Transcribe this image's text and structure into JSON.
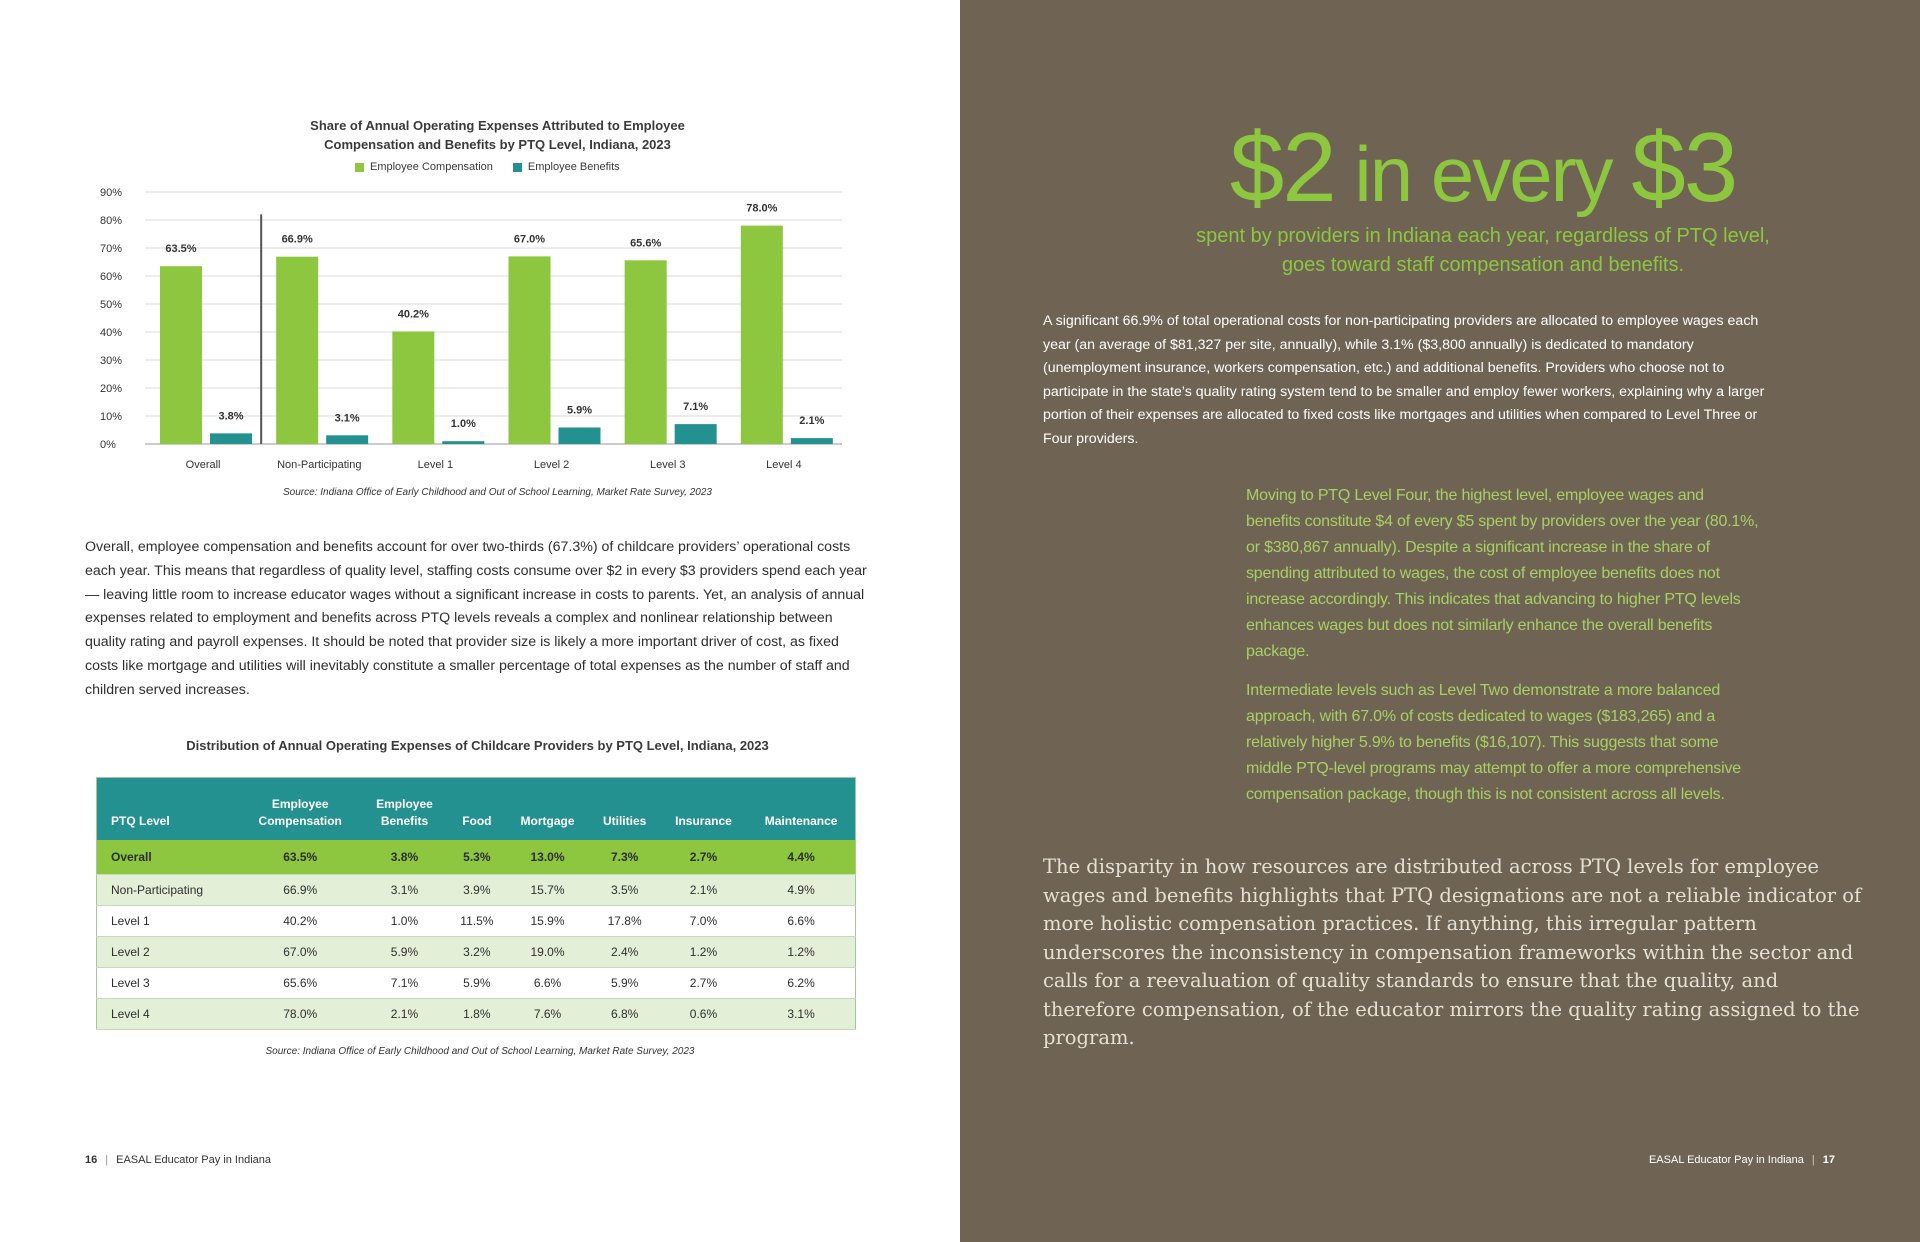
{
  "left_page": {
    "chart": {
      "title_line1": "Share of Annual Operating Expenses Attributed to Employee",
      "title_line2": "Compensation and Benefits by PTQ Level, Indiana, 2023",
      "source": "Source: Indiana Office of Early Childhood and Out of School Learning, Market Rate Survey, 2023"
    },
    "body_paragraph": "Overall, employee compensation and benefits account for over two-thirds (67.3%) of childcare providers’ operational costs each year. This means that regardless of quality level, staffing costs consume over $2 in every $3 providers spend each year — leaving little room to increase educator wages without a significant increase in costs to parents. Yet, an analysis of annual expenses related to employment and benefits across PTQ levels reveals a complex and nonlinear relationship between quality rating and payroll expenses. It should be noted that provider size is likely a more important driver of cost, as fixed costs like mortgage and utilities will inevitably constitute a smaller percentage of total expenses as the number of staff and children served increases.",
    "table": {
      "title": "Distribution of Annual Operating Expenses of Childcare Providers by PTQ Level, Indiana, 2023",
      "headers": [
        [
          "",
          "PTQ Level"
        ],
        [
          "Employee",
          "Compensation"
        ],
        [
          "Employee",
          "Benefits"
        ],
        [
          "",
          "Food"
        ],
        [
          "",
          "Mortgage"
        ],
        [
          "",
          "Utilities"
        ],
        [
          "",
          "Insurance"
        ],
        [
          "",
          "Maintenance"
        ]
      ],
      "rows": [
        [
          "Overall",
          "63.5%",
          "3.8%",
          "5.3%",
          "13.0%",
          "7.3%",
          "2.7%",
          "4.4%"
        ],
        [
          "Non-Participating",
          "66.9%",
          "3.1%",
          "3.9%",
          "15.7%",
          "3.5%",
          "2.1%",
          "4.9%"
        ],
        [
          "Level 1",
          "40.2%",
          "1.0%",
          "11.5%",
          "15.9%",
          "17.8%",
          "7.0%",
          "6.6%"
        ],
        [
          "Level 2",
          "67.0%",
          "5.9%",
          "3.2%",
          "19.0%",
          "2.4%",
          "1.2%",
          "1.2%"
        ],
        [
          "Level 3",
          "65.6%",
          "7.1%",
          "5.9%",
          "6.6%",
          "5.9%",
          "2.7%",
          "6.2%"
        ],
        [
          "Level 4",
          "78.0%",
          "2.1%",
          "1.8%",
          "7.6%",
          "6.8%",
          "0.6%",
          "3.1%"
        ]
      ],
      "source": "Source: Indiana Office of Early Childhood and Out of School Learning, Market Rate Survey, 2023"
    },
    "footer": {
      "page_number": "16",
      "separator": "|",
      "publication": "EASAL Educator Pay in Indiana"
    }
  },
  "right_page": {
    "headline_part1": "$2",
    "headline_part2": " in every ",
    "headline_part3": "$3",
    "subhead_line1": "spent by providers in Indiana each year, regardless of PTQ level,",
    "subhead_line2": "goes toward staff compensation and benefits.",
    "paragraph": "A significant 66.9% of total operational costs for non-participating providers are allocated to employee wages each year (an average of $81,327 per site, annually), while 3.1% ($3,800 annually) is dedicated to mandatory (unemployment insurance, workers compensation, etc.) and additional benefits. Providers who choose not to participate in the state’s quality rating system tend to be smaller and employ fewer workers, explaining why a larger portion of their expenses are allocated to fixed costs like mortgages and utilities when compared to Level Three or Four providers.",
    "callout_1": "Moving to PTQ Level Four, the highest level, employee wages and benefits constitute $4 of every $5 spent by providers over the year (80.1%, or $380,867 annually). Despite a significant increase in the share of spending attributed to wages, the cost of employee benefits does not increase accordingly. This indicates that advancing to higher PTQ levels enhances wages but does not similarly enhance the overall benefits package.",
    "callout_2": "Intermediate levels such as Level Two demonstrate a more balanced approach, with 67.0% of costs dedicated to wages ($183,265) and a relatively higher 5.9% to benefits ($16,107). This suggests that some middle PTQ-level programs may attempt to offer a more comprehensive compensation package, though this is not consistent across all levels.",
    "closing_paragraph": "The disparity in how resources are distributed across PTQ levels for employee wages and benefits highlights that PTQ designations are not a reliable indicator of more holistic compensation practices. If anything, this irregular pattern underscores the inconsistency in compensation frameworks within the sector and calls for a reevaluation of quality standards to ensure that the quality, and therefore compensation, of the educator mirrors the quality rating assigned to the program.",
    "footer": {
      "publication": "EASAL Educator Pay in Indiana",
      "separator": "|",
      "page_number": "17"
    }
  },
  "colors": {
    "compensation_green": "#8dc63f",
    "benefits_teal": "#23918f",
    "right_page_bg": "#6f6454"
  },
  "chart_data": {
    "type": "bar",
    "title": "Share of Annual Operating Expenses Attributed to Employee Compensation and Benefits by PTQ Level, Indiana, 2023",
    "categories": [
      "Overall",
      "Non-Participating",
      "Level 1",
      "Level 2",
      "Level 3",
      "Level 4"
    ],
    "series": [
      {
        "name": "Employee Compensation",
        "values": [
          63.5,
          66.9,
          40.2,
          67.0,
          65.6,
          78.0
        ],
        "labels": [
          "63.5%",
          "66.9%",
          "40.2%",
          "67.0%",
          "65.6%",
          "78.0%"
        ],
        "color": "#8dc63f"
      },
      {
        "name": "Employee Benefits",
        "values": [
          3.8,
          3.1,
          1.0,
          5.9,
          7.1,
          2.1
        ],
        "labels": [
          "3.8%",
          "3.1%",
          "1.0%",
          "5.9%",
          "7.1%",
          "2.1%"
        ],
        "color": "#23918f"
      }
    ],
    "y_ticks": [
      "0%",
      "10%",
      "20%",
      "30%",
      "40%",
      "50%",
      "60%",
      "70%",
      "80%",
      "90%"
    ],
    "ylim": [
      0,
      90
    ],
    "grid": true,
    "legend_position": "top-center",
    "separator_after_category": "Overall"
  }
}
